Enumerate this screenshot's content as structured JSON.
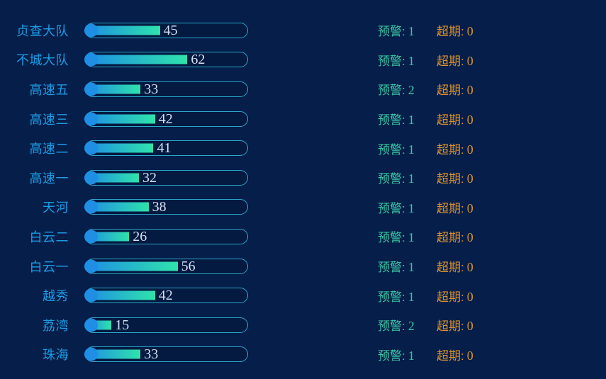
{
  "page": {
    "background": "#051e4a"
  },
  "colors": {
    "label_blue": "#1c9ce4",
    "bar_border_cyan": "#2ca6c9",
    "bar_fill_start_blue": "#1e8fe4",
    "bar_fill_end_green": "#2fe3ab",
    "bar_cap_blue": "#1e8fe4",
    "bar_value_text": "#d6dff2",
    "warning_teal": "#3bc7a3",
    "overdue_orange": "#d9922f"
  },
  "labels": {
    "warning_prefix": "预警:",
    "overdue_prefix": "超期:"
  },
  "chart_data": {
    "type": "bar",
    "orientation": "horizontal",
    "title": "",
    "xlabel": "",
    "ylabel": "",
    "xlim": [
      0,
      100
    ],
    "grid": false,
    "legend": false,
    "categories": [
      "贞查大队",
      "不城大队",
      "高速五",
      "高速三",
      "高速二",
      "高速一",
      "天河",
      "白云二",
      "白云一",
      "越秀",
      "荔湾",
      "珠海"
    ],
    "series": [
      {
        "name": "bar_value",
        "values": [
          45,
          62,
          33,
          42,
          41,
          32,
          38,
          26,
          56,
          42,
          15,
          33
        ]
      },
      {
        "name": "预警",
        "values": [
          1,
          1,
          2,
          1,
          1,
          1,
          1,
          1,
          1,
          1,
          2,
          1
        ]
      },
      {
        "name": "超期",
        "values": [
          0,
          0,
          0,
          0,
          0,
          0,
          0,
          0,
          0,
          0,
          0,
          0
        ]
      }
    ]
  },
  "rows": [
    {
      "label": "贞查大队",
      "value": 45,
      "warning": 1,
      "overdue": 0
    },
    {
      "label": "不城大队",
      "value": 62,
      "warning": 1,
      "overdue": 0
    },
    {
      "label": "高速五",
      "value": 33,
      "warning": 2,
      "overdue": 0
    },
    {
      "label": "高速三",
      "value": 42,
      "warning": 1,
      "overdue": 0
    },
    {
      "label": "高速二",
      "value": 41,
      "warning": 1,
      "overdue": 0
    },
    {
      "label": "高速一",
      "value": 32,
      "warning": 1,
      "overdue": 0
    },
    {
      "label": "天河",
      "value": 38,
      "warning": 1,
      "overdue": 0
    },
    {
      "label": "白云二",
      "value": 26,
      "warning": 1,
      "overdue": 0
    },
    {
      "label": "白云一",
      "value": 56,
      "warning": 1,
      "overdue": 0
    },
    {
      "label": "越秀",
      "value": 42,
      "warning": 1,
      "overdue": 0
    },
    {
      "label": "荔湾",
      "value": 15,
      "warning": 2,
      "overdue": 0
    },
    {
      "label": "珠海",
      "value": 33,
      "warning": 1,
      "overdue": 0
    }
  ]
}
